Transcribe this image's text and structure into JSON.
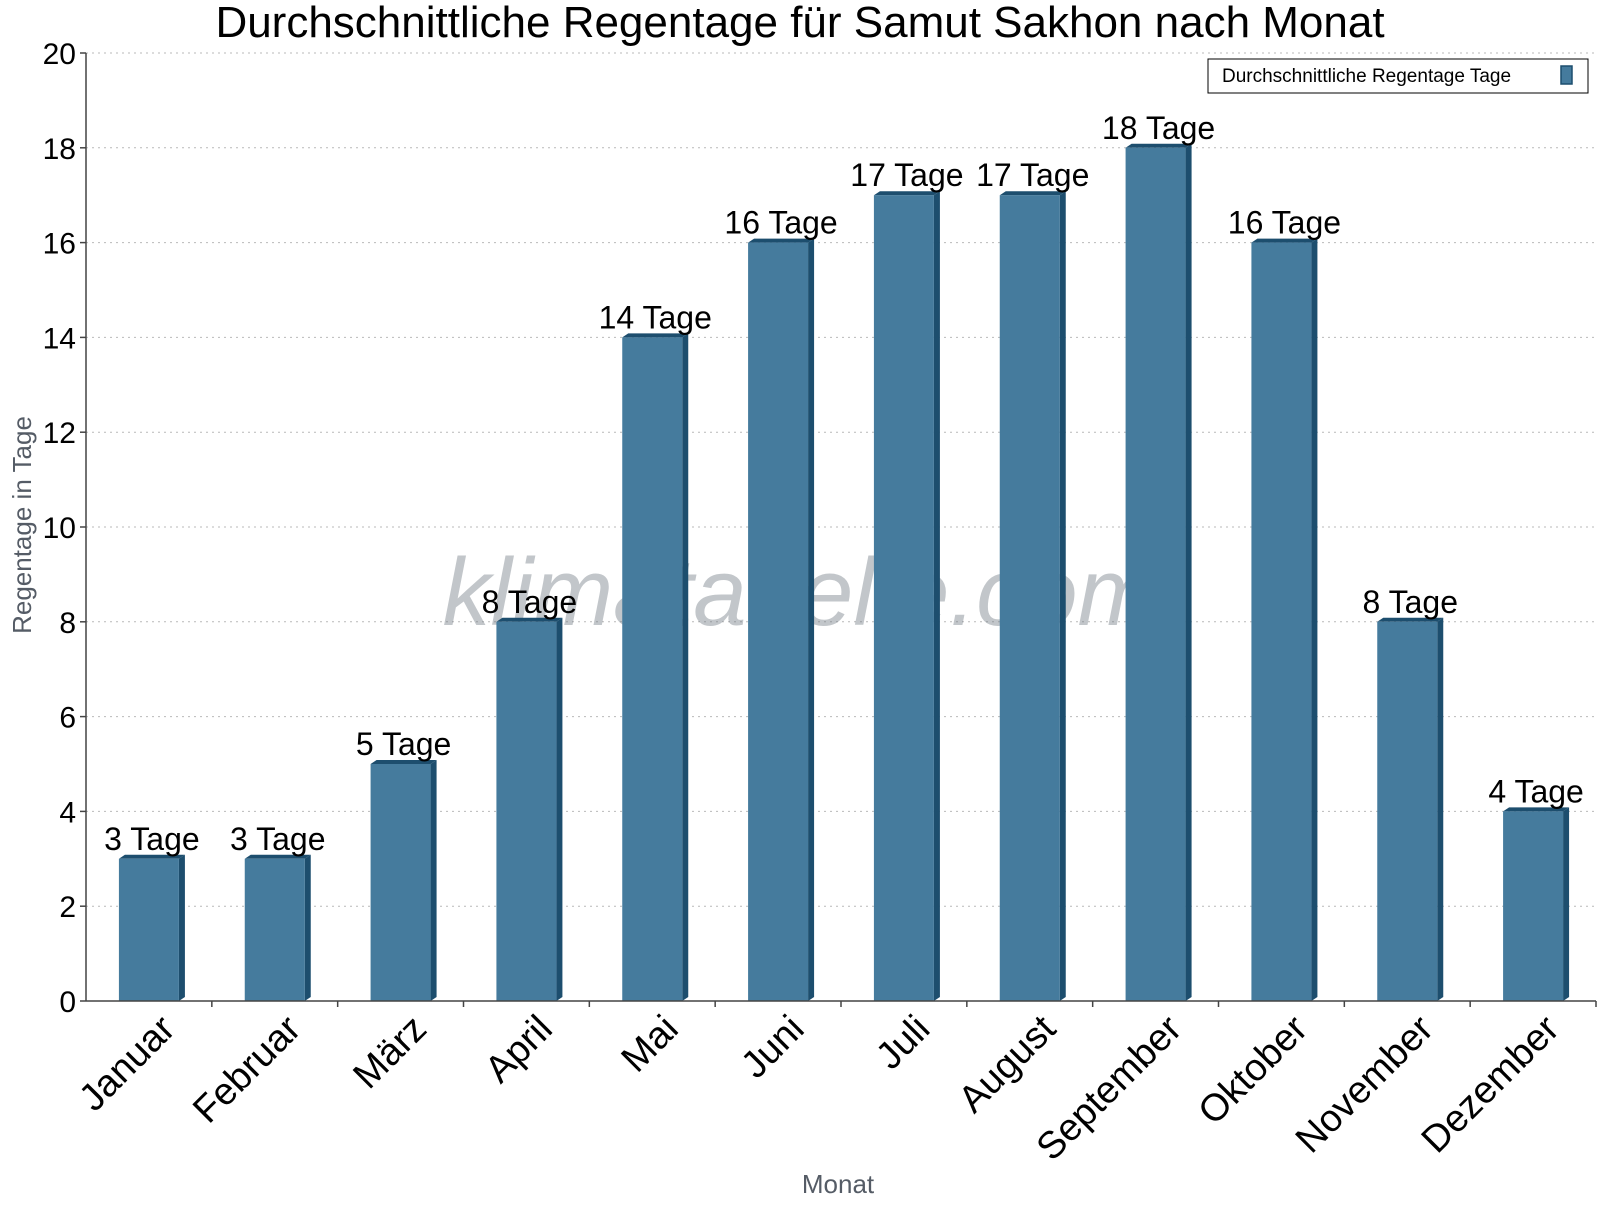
{
  "chart_data": {
    "type": "bar",
    "title": "Durchschnittliche Regentage für Samut Sakhon nach Monat",
    "xlabel": "Monat",
    "ylabel": "Regentage in Tage",
    "ylim": [
      0,
      20
    ],
    "yticks": [
      0,
      2,
      4,
      6,
      8,
      10,
      12,
      14,
      16,
      18,
      20
    ],
    "grid": true,
    "legend_position": "top-right",
    "categories": [
      "Januar",
      "Februar",
      "März",
      "April",
      "Mai",
      "Juni",
      "Juli",
      "August",
      "September",
      "Oktober",
      "November",
      "Dezember"
    ],
    "series": [
      {
        "name": "Durchschnittliche Regentage Tage",
        "values": [
          3,
          3,
          5,
          8,
          14,
          16,
          17,
          17,
          18,
          16,
          8,
          4
        ],
        "data_labels": [
          "3 Tage",
          "3 Tage",
          "5 Tage",
          "8 Tage",
          "14 Tage",
          "16 Tage",
          "17 Tage",
          "17 Tage",
          "18 Tage",
          "16 Tage",
          "8 Tage",
          "4 Tage"
        ],
        "color": "#457b9d",
        "shadow_color": "#1d4e6e"
      }
    ],
    "watermark": "klimatabelle.com"
  }
}
